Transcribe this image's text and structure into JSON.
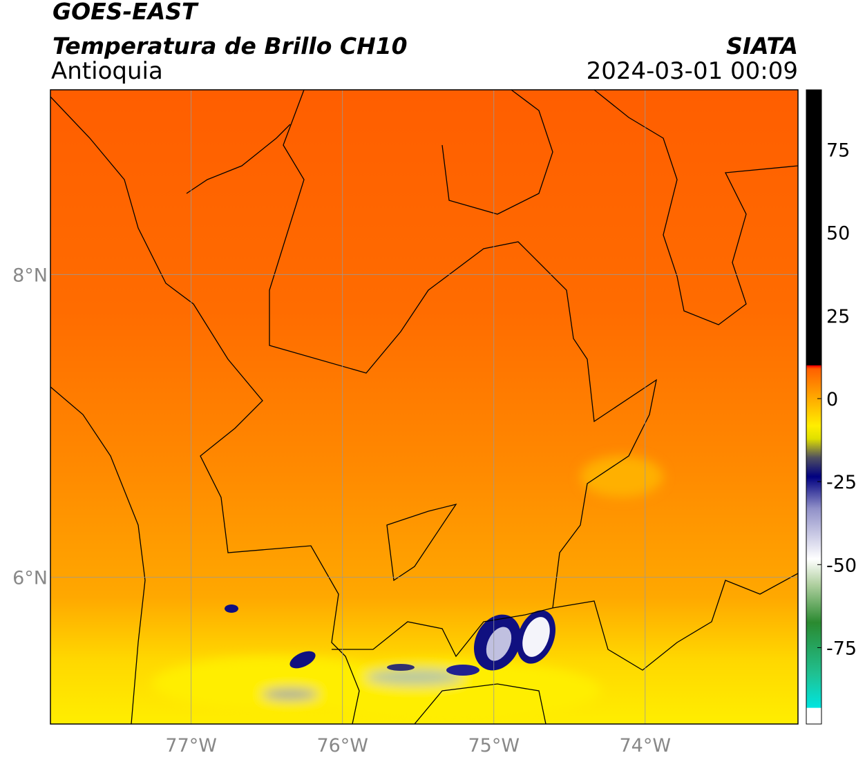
{
  "header": {
    "title": "GOES-EAST",
    "subtitle": "Temperatura de Brillo CH10",
    "region": "Antioquia",
    "source": "SIATA",
    "datetime": "2024-03-01 00:09"
  },
  "map": {
    "lonlim": [
      -77.93,
      -72.99
    ],
    "latlim": [
      5.03,
      9.22
    ],
    "lonticks": [
      {
        "value": -77,
        "label": "77°W"
      },
      {
        "value": -76,
        "label": "76°W"
      },
      {
        "value": -75,
        "label": "75°W"
      },
      {
        "value": -74,
        "label": "74°W"
      }
    ],
    "latticks": [
      {
        "value": 8,
        "label": "8°N"
      },
      {
        "value": 6,
        "label": "6°N"
      }
    ]
  },
  "colorbar": {
    "lim": [
      -98,
      93
    ],
    "ticks": [
      75,
      50,
      25,
      0,
      -25,
      -50,
      -75
    ]
  }
}
